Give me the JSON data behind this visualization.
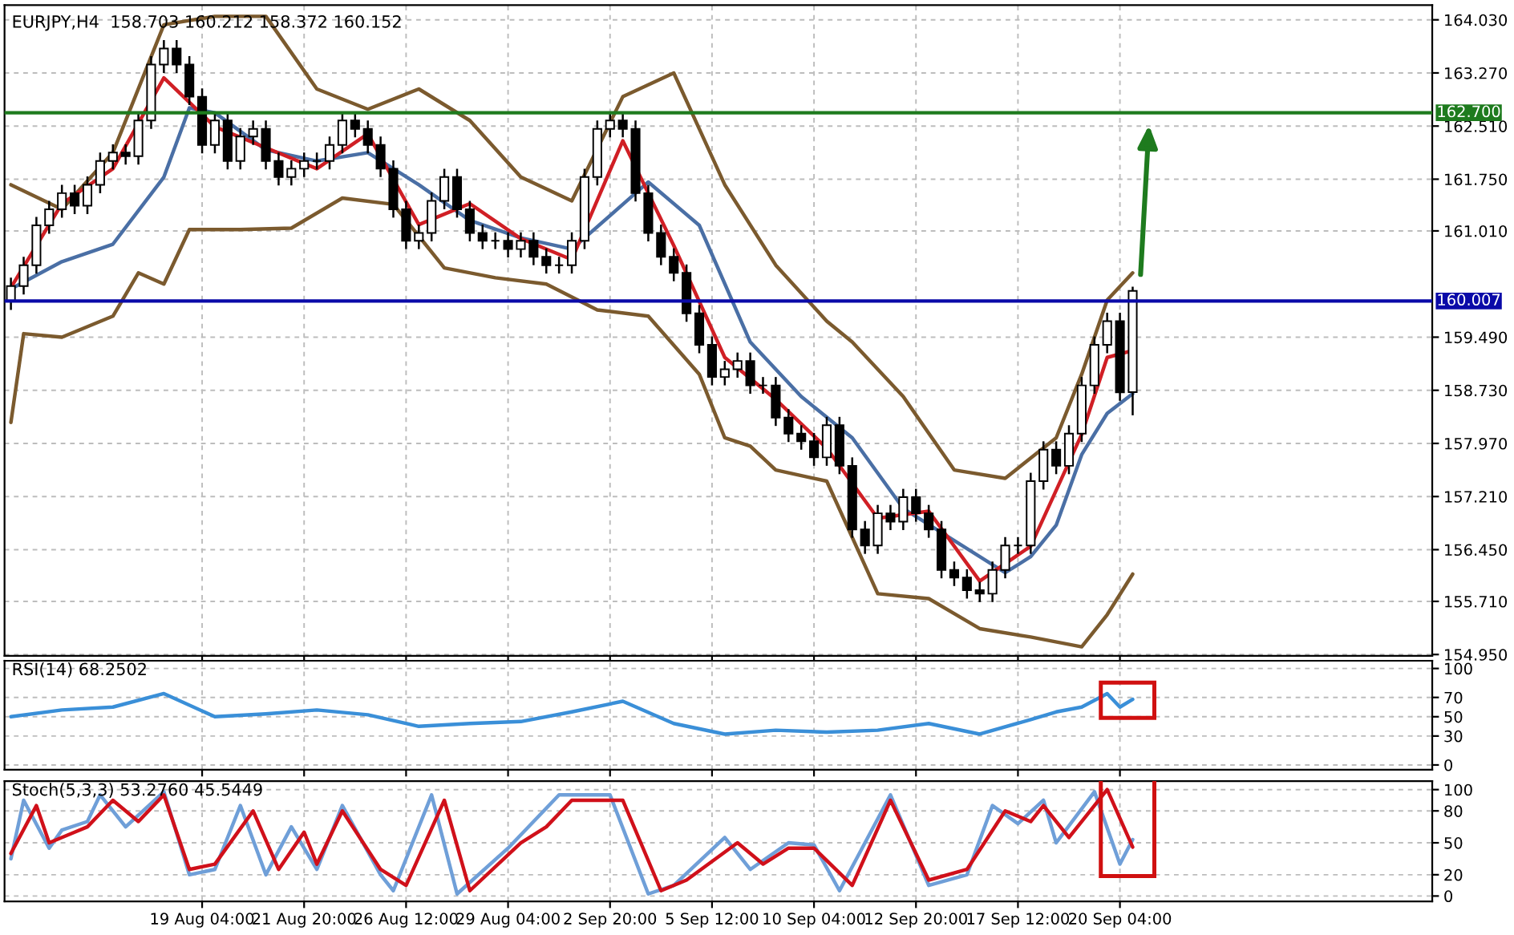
{
  "chart_data": [
    {
      "type": "candlestick",
      "title": "EURJPY,H4  158.703 160.212 158.372 160.152",
      "color": "#000000",
      "tick_labels": "y",
      "grid": true,
      "categories": [
        null,
        null,
        null,
        null,
        null,
        null,
        null,
        null,
        null,
        null,
        null,
        null,
        null,
        null,
        null,
        null,
        null,
        null,
        null,
        null,
        null,
        null,
        null,
        null,
        null,
        null,
        null,
        null,
        null,
        null,
        null,
        null,
        null,
        null,
        null,
        null,
        null,
        null,
        null,
        null,
        null,
        null,
        null,
        null,
        null,
        null,
        null,
        null,
        null,
        null,
        null,
        null,
        null,
        null,
        null,
        null,
        null,
        null,
        null,
        null,
        null,
        null,
        null,
        null,
        null,
        null,
        null,
        null,
        null,
        null,
        null,
        null,
        null,
        null,
        null,
        null,
        null,
        null,
        null,
        null,
        null,
        null,
        null,
        null,
        null,
        null,
        null,
        null,
        null,
        null,
        null,
        null,
        null,
        null,
        null,
        null,
        null,
        null,
        null,
        null,
        null,
        null,
        null,
        null,
        null,
        null,
        null,
        null,
        null,
        null,
        null,
        null
      ],
      "ohlc": [
        [
          160.0,
          160.34,
          159.88,
          160.22
        ],
        [
          160.22,
          160.64,
          160.1,
          160.52
        ],
        [
          160.52,
          161.21,
          160.4,
          161.09
        ],
        [
          161.09,
          161.44,
          160.97,
          161.32
        ],
        [
          161.32,
          161.67,
          161.2,
          161.55
        ],
        [
          161.55,
          161.67,
          161.25,
          161.37
        ],
        [
          161.37,
          161.79,
          161.25,
          161.67
        ],
        [
          161.67,
          162.13,
          161.55,
          162.01
        ],
        [
          162.01,
          162.25,
          161.89,
          162.13
        ],
        [
          162.13,
          162.25,
          161.96,
          162.08
        ],
        [
          162.08,
          162.71,
          161.96,
          162.59
        ],
        [
          162.59,
          163.51,
          162.47,
          163.39
        ],
        [
          163.39,
          163.74,
          163.27,
          163.62
        ],
        [
          163.62,
          163.74,
          163.27,
          163.39
        ],
        [
          163.39,
          163.51,
          162.81,
          162.93
        ],
        [
          162.93,
          163.05,
          162.12,
          162.24
        ],
        [
          162.24,
          162.71,
          162.12,
          162.59
        ],
        [
          162.59,
          162.71,
          161.89,
          162.01
        ],
        [
          162.01,
          162.48,
          161.89,
          162.36
        ],
        [
          162.36,
          162.59,
          162.24,
          162.47
        ],
        [
          162.47,
          162.59,
          161.89,
          162.01
        ],
        [
          162.01,
          162.13,
          161.66,
          161.78
        ],
        [
          161.78,
          162.02,
          161.66,
          161.9
        ],
        [
          161.9,
          162.13,
          161.78,
          162.01
        ],
        [
          162.01,
          162.13,
          161.89,
          162.01
        ],
        [
          162.01,
          162.36,
          161.89,
          162.24
        ],
        [
          162.24,
          162.71,
          162.12,
          162.59
        ],
        [
          162.59,
          162.71,
          162.35,
          162.47
        ],
        [
          162.47,
          162.59,
          162.12,
          162.24
        ],
        [
          162.24,
          162.36,
          161.78,
          161.9
        ],
        [
          161.9,
          162.02,
          161.2,
          161.32
        ],
        [
          161.32,
          161.44,
          160.75,
          160.87
        ],
        [
          160.87,
          161.1,
          160.75,
          160.98
        ],
        [
          160.98,
          161.56,
          160.86,
          161.44
        ],
        [
          161.44,
          161.9,
          161.32,
          161.78
        ],
        [
          161.78,
          161.9,
          161.2,
          161.32
        ],
        [
          161.32,
          161.44,
          160.86,
          160.98
        ],
        [
          160.98,
          161.1,
          160.75,
          160.87
        ],
        [
          160.87,
          160.99,
          160.75,
          160.87
        ],
        [
          160.87,
          160.99,
          160.63,
          160.75
        ],
        [
          160.75,
          160.99,
          160.63,
          160.87
        ],
        [
          160.87,
          160.99,
          160.52,
          160.64
        ],
        [
          160.64,
          160.76,
          160.4,
          160.52
        ],
        [
          160.52,
          160.64,
          160.4,
          160.52
        ],
        [
          160.52,
          160.99,
          160.4,
          160.87
        ],
        [
          160.87,
          161.9,
          160.75,
          161.78
        ],
        [
          161.78,
          162.59,
          161.66,
          162.47
        ],
        [
          162.47,
          162.71,
          162.35,
          162.59
        ],
        [
          162.59,
          162.71,
          162.35,
          162.47
        ],
        [
          162.47,
          162.59,
          161.43,
          161.55
        ],
        [
          161.55,
          161.67,
          160.86,
          160.98
        ],
        [
          160.98,
          161.1,
          160.52,
          160.64
        ],
        [
          160.64,
          160.76,
          160.29,
          160.41
        ],
        [
          160.41,
          160.53,
          159.71,
          159.83
        ],
        [
          159.83,
          159.95,
          159.26,
          159.38
        ],
        [
          159.38,
          159.5,
          158.8,
          158.92
        ],
        [
          158.92,
          159.15,
          158.8,
          159.03
        ],
        [
          159.03,
          159.27,
          158.91,
          159.15
        ],
        [
          159.15,
          159.27,
          158.68,
          158.8
        ],
        [
          158.8,
          158.92,
          158.68,
          158.8
        ],
        [
          158.8,
          158.92,
          158.22,
          158.34
        ],
        [
          158.34,
          158.46,
          157.99,
          158.11
        ],
        [
          158.11,
          158.23,
          157.88,
          158.0
        ],
        [
          158.0,
          158.12,
          157.65,
          157.77
        ],
        [
          157.77,
          158.35,
          157.65,
          158.23
        ],
        [
          158.23,
          158.35,
          157.53,
          157.65
        ],
        [
          157.65,
          157.77,
          156.62,
          156.74
        ],
        [
          156.74,
          156.86,
          156.39,
          156.51
        ],
        [
          156.51,
          157.09,
          156.39,
          156.97
        ],
        [
          156.97,
          157.09,
          156.73,
          156.85
        ],
        [
          156.85,
          157.32,
          156.73,
          157.2
        ],
        [
          157.2,
          157.32,
          156.85,
          156.97
        ],
        [
          156.97,
          157.09,
          156.62,
          156.74
        ],
        [
          156.74,
          156.86,
          156.04,
          156.16
        ],
        [
          156.16,
          156.28,
          155.93,
          156.05
        ],
        [
          156.05,
          156.17,
          155.75,
          155.87
        ],
        [
          155.87,
          155.99,
          155.7,
          155.82
        ],
        [
          155.82,
          156.28,
          155.7,
          156.16
        ],
        [
          156.16,
          156.63,
          156.04,
          156.51
        ],
        [
          156.51,
          156.63,
          156.39,
          156.51
        ],
        [
          156.51,
          157.55,
          156.39,
          157.43
        ],
        [
          157.43,
          158.0,
          157.31,
          157.88
        ],
        [
          157.88,
          158.0,
          157.53,
          157.65
        ],
        [
          157.65,
          158.23,
          157.53,
          158.11
        ],
        [
          158.11,
          158.92,
          157.99,
          158.8
        ],
        [
          158.8,
          159.5,
          158.68,
          159.38
        ],
        [
          159.38,
          159.84,
          159.26,
          159.72
        ],
        [
          159.72,
          159.84,
          158.58,
          158.7
        ],
        [
          158.703,
          160.212,
          158.372,
          160.152
        ],
        null,
        null,
        null,
        null,
        null,
        null,
        null,
        null,
        null,
        null,
        null,
        null,
        null,
        null,
        null,
        null,
        null,
        null,
        null,
        null,
        null,
        null,
        null
      ],
      "series": [
        {
          "type": "line",
          "color": "#7b5a2e",
          "values": [
            161.67,
            null,
            null,
            null,
            161.32,
            null,
            null,
            null,
            162.13,
            null,
            null,
            null,
            163.96,
            null,
            null,
            null,
            164.08,
            null,
            null,
            null,
            164.08,
            null,
            null,
            null,
            163.04,
            null,
            null,
            null,
            162.75,
            null,
            null,
            null,
            163.04,
            null,
            null,
            null,
            162.59,
            null,
            null,
            null,
            161.78,
            null,
            null,
            null,
            161.44,
            null,
            null,
            null,
            162.93,
            null,
            null,
            null,
            163.27,
            null,
            null,
            null,
            161.67,
            null,
            null,
            null,
            160.52,
            null,
            null,
            null,
            159.72,
            null,
            159.42,
            null,
            null,
            null,
            158.64,
            null,
            null,
            null,
            157.59,
            null,
            null,
            null,
            157.47,
            null,
            null,
            null,
            158.05,
            null,
            158.96,
            null,
            160.02,
            null,
            160.41,
            null,
            null,
            null,
            null,
            null,
            null,
            null,
            null,
            null,
            null,
            null,
            null,
            null,
            null,
            null,
            null,
            null,
            null,
            null,
            null,
            null,
            null,
            null
          ]
        },
        {
          "type": "line",
          "color": "#7b5a2e",
          "values": [
            158.27,
            159.54,
            null,
            null,
            159.49,
            null,
            null,
            null,
            159.79,
            null,
            160.41,
            null,
            160.25,
            null,
            161.03,
            null,
            null,
            null,
            161.03,
            null,
            null,
            null,
            161.05,
            null,
            null,
            null,
            161.48,
            null,
            null,
            null,
            161.39,
            null,
            null,
            null,
            160.48,
            null,
            null,
            null,
            160.34,
            null,
            null,
            null,
            160.25,
            null,
            null,
            null,
            159.88,
            null,
            null,
            null,
            159.79,
            null,
            null,
            null,
            158.96,
            null,
            158.05,
            null,
            157.93,
            null,
            157.59,
            null,
            null,
            null,
            157.43,
            null,
            null,
            null,
            155.82,
            null,
            null,
            null,
            155.75,
            null,
            null,
            null,
            155.32,
            null,
            null,
            null,
            155.2,
            null,
            null,
            null,
            155.06,
            null,
            155.52,
            null,
            156.1,
            null,
            null,
            null,
            null,
            null,
            null,
            null,
            null,
            null,
            null,
            null,
            null,
            null,
            null,
            null,
            null,
            null,
            null,
            null,
            null,
            null,
            null,
            null
          ]
        },
        {
          "type": "line",
          "color": "#4a6fa5",
          "values": [
            160.18,
            null,
            null,
            null,
            160.57,
            null,
            null,
            null,
            160.82,
            null,
            null,
            null,
            161.78,
            null,
            162.77,
            null,
            162.7,
            null,
            null,
            null,
            162.17,
            null,
            null,
            null,
            162.01,
            null,
            null,
            null,
            162.13,
            null,
            null,
            null,
            161.67,
            null,
            null,
            null,
            161.16,
            null,
            null,
            null,
            160.91,
            null,
            null,
            null,
            160.75,
            null,
            null,
            null,
            161.39,
            null,
            161.71,
            null,
            null,
            null,
            161.09,
            null,
            null,
            null,
            159.42,
            null,
            null,
            null,
            158.64,
            null,
            null,
            null,
            158.05,
            null,
            null,
            null,
            157.04,
            null,
            null,
            null,
            156.58,
            null,
            null,
            null,
            156.12,
            null,
            156.35,
            null,
            156.8,
            null,
            157.81,
            null,
            158.4,
            null,
            158.68,
            null,
            null,
            null,
            null,
            null,
            null,
            null,
            null,
            null,
            null,
            null,
            null,
            null,
            null,
            null,
            null,
            null,
            null,
            null,
            null,
            null,
            null,
            null
          ]
        },
        {
          "type": "line",
          "color": "#d01f25",
          "values": [
            160.2,
            null,
            null,
            null,
            161.4,
            null,
            null,
            null,
            161.9,
            null,
            null,
            null,
            163.2,
            null,
            null,
            null,
            162.5,
            null,
            null,
            null,
            162.2,
            null,
            null,
            null,
            161.9,
            null,
            null,
            null,
            162.4,
            null,
            null,
            null,
            161.1,
            null,
            null,
            null,
            161.4,
            null,
            null,
            null,
            160.9,
            null,
            null,
            null,
            160.6,
            null,
            null,
            null,
            162.3,
            null,
            null,
            null,
            160.8,
            null,
            null,
            null,
            159.2,
            null,
            null,
            null,
            158.6,
            null,
            null,
            null,
            157.9,
            null,
            null,
            null,
            156.9,
            null,
            null,
            null,
            157.0,
            null,
            null,
            null,
            156.0,
            null,
            null,
            null,
            156.5,
            null,
            null,
            null,
            158.1,
            null,
            159.2,
            null,
            159.3,
            null,
            null,
            null,
            null,
            null,
            null,
            null,
            null,
            null,
            null,
            null,
            null,
            null,
            null,
            null,
            null,
            null,
            null,
            null,
            null,
            null,
            null,
            null
          ]
        }
      ],
      "ref_lines": [
        {
          "axis": "y",
          "value": 162.7,
          "label": "162.700",
          "color": "#1e7b1e"
        },
        {
          "axis": "y",
          "value": 160.007,
          "label": "160.007",
          "color": "#0a0aa8"
        }
      ],
      "ylim": [
        154.93,
        164.24
      ],
      "yticks": [
        {
          "value": 164.03,
          "label": "164.030"
        },
        {
          "value": 163.27,
          "label": "163.270"
        },
        {
          "value": 162.51,
          "label": "162.510"
        },
        {
          "value": 161.75,
          "label": "161.750"
        },
        {
          "value": 161.01,
          "label": "161.010"
        },
        {
          "value": 159.49,
          "label": "159.490"
        },
        {
          "value": 158.73,
          "label": "158.730"
        },
        {
          "value": 157.97,
          "label": "157.970"
        },
        {
          "value": 157.21,
          "label": "157.210"
        },
        {
          "value": 156.45,
          "label": "156.450"
        },
        {
          "value": 155.71,
          "label": "155.710"
        },
        {
          "value": 154.95,
          "label": "154.950"
        }
      ]
    },
    {
      "type": "line",
      "title": "RSI(14) 68.2502",
      "tick_labels": "y",
      "grid": true,
      "categories": [
        null,
        null,
        null,
        null,
        null,
        null,
        null,
        null,
        null,
        null,
        null,
        null,
        null,
        null,
        null,
        null,
        null,
        null,
        null,
        null,
        null,
        null,
        null,
        null,
        null,
        null,
        null,
        null,
        null,
        null,
        null,
        null,
        null,
        null,
        null,
        null,
        null,
        null,
        null,
        null,
        null,
        null,
        null,
        null,
        null,
        null,
        null,
        null,
        null,
        null,
        null,
        null,
        null,
        null,
        null,
        null,
        null,
        null,
        null,
        null,
        null,
        null,
        null,
        null,
        null,
        null,
        null,
        null,
        null,
        null,
        null,
        null,
        null,
        null,
        null,
        null,
        null,
        null,
        null,
        null,
        null,
        null,
        null,
        null,
        null,
        null,
        null,
        null,
        null,
        null,
        null,
        null,
        null,
        null,
        null,
        null,
        null,
        null,
        null,
        null,
        null,
        null,
        null,
        null,
        null,
        null,
        null,
        null,
        null,
        null,
        null,
        null
      ],
      "series": [
        {
          "color": "#3a8fd8",
          "values": [
            50,
            null,
            null,
            null,
            57,
            null,
            null,
            null,
            60,
            null,
            null,
            null,
            74,
            null,
            null,
            null,
            50,
            null,
            null,
            null,
            53,
            null,
            null,
            null,
            57,
            null,
            null,
            null,
            52,
            null,
            null,
            null,
            40,
            null,
            null,
            null,
            43,
            null,
            null,
            null,
            45,
            null,
            null,
            null,
            55,
            null,
            null,
            null,
            66,
            null,
            null,
            null,
            43,
            null,
            null,
            null,
            32,
            null,
            null,
            null,
            36,
            null,
            null,
            null,
            34,
            null,
            null,
            null,
            36,
            null,
            null,
            null,
            43,
            null,
            null,
            null,
            32,
            null,
            null,
            null,
            47,
            null,
            55,
            null,
            60,
            null,
            74,
            60,
            68,
            null,
            null,
            null,
            null,
            null,
            null,
            null,
            null,
            null,
            null,
            null,
            null,
            null,
            null,
            null,
            null,
            null,
            null,
            null,
            null,
            null,
            null,
            null
          ]
        }
      ],
      "ylim": [
        -5,
        108
      ],
      "yticks": [
        0,
        30,
        50,
        70,
        100
      ]
    },
    {
      "type": "line",
      "title": "Stoch(5,3,3) 53.2760 45.5449",
      "grid": true,
      "categories": [
        null,
        null,
        null,
        null,
        null,
        null,
        null,
        null,
        null,
        null,
        null,
        null,
        null,
        null,
        null,
        "19 Aug 04:00",
        null,
        null,
        null,
        null,
        null,
        null,
        null,
        "21 Aug 20:00",
        null,
        null,
        null,
        null,
        null,
        null,
        null,
        "26 Aug 12:00",
        null,
        null,
        null,
        null,
        null,
        null,
        null,
        "29 Aug 04:00",
        null,
        null,
        null,
        null,
        null,
        null,
        null,
        "2 Sep 20:00",
        null,
        null,
        null,
        null,
        null,
        null,
        null,
        "5 Sep 12:00",
        null,
        null,
        null,
        null,
        null,
        null,
        null,
        "10 Sep 04:00",
        null,
        null,
        null,
        null,
        null,
        null,
        null,
        "12 Sep 20:00",
        null,
        null,
        null,
        null,
        null,
        null,
        null,
        "17 Sep 12:00",
        null,
        null,
        null,
        null,
        null,
        null,
        null,
        "20 Sep 04:00",
        null,
        null,
        null,
        null,
        null,
        null,
        null,
        null,
        null,
        null,
        null,
        null,
        null,
        null,
        null,
        null,
        null,
        null,
        null,
        null,
        null,
        null,
        null,
        null
      ],
      "series": [
        {
          "color": "#6f9fd8",
          "values": [
            35,
            90,
            null,
            45,
            62,
            null,
            70,
            95,
            null,
            65,
            null,
            null,
            98,
            null,
            20,
            null,
            25,
            null,
            85,
            null,
            20,
            null,
            65,
            null,
            25,
            null,
            85,
            null,
            null,
            20,
            5,
            null,
            null,
            95,
            null,
            2,
            null,
            null,
            null,
            45,
            null,
            70,
            null,
            95,
            null,
            null,
            null,
            95,
            null,
            null,
            2,
            null,
            10,
            null,
            null,
            null,
            55,
            null,
            25,
            null,
            null,
            50,
            null,
            48,
            null,
            5,
            null,
            null,
            null,
            95,
            null,
            null,
            10,
            null,
            null,
            20,
            null,
            85,
            null,
            68,
            null,
            90,
            50,
            null,
            null,
            98,
            null,
            30,
            53,
            null,
            null,
            null,
            null,
            null,
            null,
            null,
            null,
            null,
            null,
            null,
            null,
            null,
            null,
            null,
            null,
            null,
            null,
            null,
            null,
            null,
            null,
            null
          ]
        },
        {
          "color": "#d0101a",
          "values": [
            40,
            null,
            85,
            50,
            null,
            60,
            65,
            null,
            90,
            null,
            70,
            null,
            95,
            null,
            25,
            null,
            30,
            null,
            null,
            80,
            null,
            25,
            null,
            60,
            30,
            null,
            80,
            null,
            null,
            25,
            null,
            10,
            null,
            null,
            90,
            null,
            5,
            null,
            null,
            null,
            50,
            null,
            65,
            null,
            90,
            null,
            null,
            null,
            90,
            null,
            null,
            5,
            null,
            15,
            null,
            null,
            null,
            50,
            null,
            30,
            null,
            45,
            null,
            45,
            null,
            null,
            10,
            null,
            null,
            90,
            null,
            null,
            15,
            null,
            null,
            25,
            null,
            null,
            80,
            null,
            70,
            85,
            null,
            55,
            null,
            null,
            100,
            null,
            46,
            null,
            null,
            null,
            null,
            null,
            null,
            null,
            null,
            null,
            null,
            null,
            null,
            null,
            null,
            null,
            null,
            null,
            null,
            null,
            null,
            null,
            null,
            null
          ]
        }
      ],
      "ylim": [
        -5,
        108
      ],
      "yticks": [
        0,
        20,
        50,
        80,
        100
      ]
    }
  ]
}
